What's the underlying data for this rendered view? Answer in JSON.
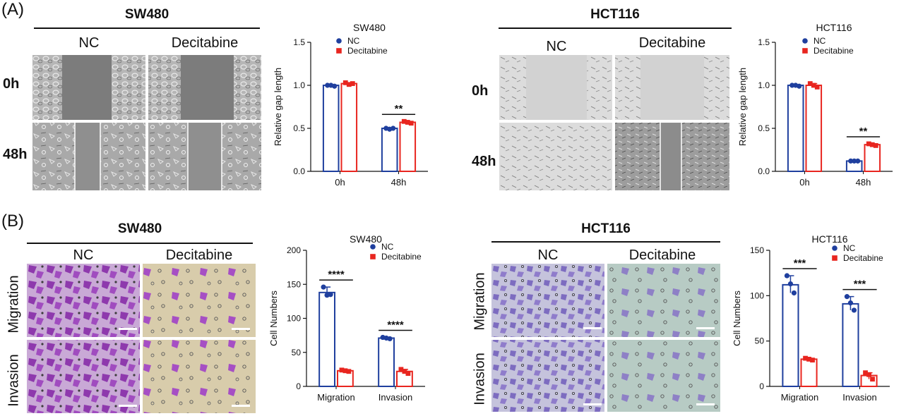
{
  "panel_a": {
    "label": "(A)",
    "sw480": {
      "title": "SW480",
      "col_nc": "NC",
      "col_dec": "Decitabine",
      "row_0h": "0h",
      "row_48h": "48h"
    },
    "hct116": {
      "title": "HCT116",
      "col_nc": "NC",
      "col_dec": "Decitabine",
      "row_0h": "0h",
      "row_48h": "48h"
    }
  },
  "panel_b": {
    "label": "(B)",
    "sw480": {
      "title": "SW480",
      "col_nc": "NC",
      "col_dec": "Decitabine",
      "row_migration": "Migration",
      "row_invasion": "Invasion"
    },
    "hct116": {
      "title": "HCT116",
      "col_nc": "NC",
      "col_dec": "Decitabine",
      "row_migration": "Migration",
      "row_invasion": "Invasion"
    }
  },
  "colors": {
    "nc": "#1f3f9e",
    "decitabine": "#e8251f",
    "stain_dark": "#9a3fb5",
    "stain_light_bg": "#d9cdb0"
  },
  "chart_data": [
    {
      "type": "bar",
      "title": "SW480",
      "ylabel": "Relative gap length",
      "xlabel": "",
      "categories": [
        "0h",
        "48h"
      ],
      "ylim": [
        0,
        1.5
      ],
      "yticks": [
        "0.0",
        "0.5",
        "1.0",
        "1.5"
      ],
      "legend_position": "top-left",
      "series": [
        {
          "name": "NC",
          "values": [
            1.0,
            0.5
          ],
          "points": [
            [
              1.0,
              1.0,
              0.99
            ],
            [
              0.5,
              0.49,
              0.5
            ]
          ]
        },
        {
          "name": "Decitabine",
          "values": [
            1.02,
            0.57
          ],
          "points": [
            [
              1.03,
              1.01,
              1.02
            ],
            [
              0.58,
              0.57,
              0.56
            ]
          ]
        }
      ],
      "significance": [
        {
          "category": "48h",
          "label": "**"
        }
      ]
    },
    {
      "type": "bar",
      "title": "HCT116",
      "ylabel": "Relative gap length",
      "xlabel": "",
      "categories": [
        "0h",
        "48h"
      ],
      "ylim": [
        0,
        1.5
      ],
      "yticks": [
        "0.0",
        "0.5",
        "1.0",
        "1.5"
      ],
      "legend_position": "top-left",
      "series": [
        {
          "name": "NC",
          "values": [
            1.0,
            0.12
          ],
          "points": [
            [
              1.0,
              1.0,
              0.99
            ],
            [
              0.12,
              0.12,
              0.12
            ]
          ]
        },
        {
          "name": "Decitabine",
          "values": [
            1.0,
            0.31
          ],
          "points": [
            [
              1.02,
              1.0,
              0.98
            ],
            [
              0.32,
              0.31,
              0.3
            ]
          ]
        }
      ],
      "significance": [
        {
          "category": "48h",
          "label": "**"
        }
      ]
    },
    {
      "type": "bar",
      "title": "SW480",
      "ylabel": "Cell Numbers",
      "xlabel": "",
      "categories": [
        "Migration",
        "Invasion"
      ],
      "ylim": [
        0,
        200
      ],
      "yticks": [
        "0",
        "50",
        "100",
        "150",
        "200"
      ],
      "legend_position": "top-right",
      "series": [
        {
          "name": "NC",
          "values": [
            138,
            71
          ],
          "points": [
            [
              146,
              134,
              135
            ],
            [
              72,
              71,
              70
            ]
          ]
        },
        {
          "name": "Decitabine",
          "values": [
            23,
            22
          ],
          "points": [
            [
              24,
              23,
              22
            ],
            [
              25,
              22,
              19
            ]
          ]
        }
      ],
      "significance": [
        {
          "category": "Migration",
          "label": "****"
        },
        {
          "category": "Invasion",
          "label": "****"
        }
      ]
    },
    {
      "type": "bar",
      "title": "HCT116",
      "ylabel": "Cell Numbers",
      "xlabel": "",
      "categories": [
        "Migration",
        "Invasion"
      ],
      "ylim": [
        0,
        150
      ],
      "yticks": [
        "0",
        "50",
        "100",
        "150"
      ],
      "legend_position": "top-right",
      "series": [
        {
          "name": "NC",
          "values": [
            112,
            91
          ],
          "points": [
            [
              122,
              113,
              103
            ],
            [
              99,
              92,
              84
            ]
          ]
        },
        {
          "name": "Decitabine",
          "values": [
            30,
            12
          ],
          "points": [
            [
              31,
              30,
              29
            ],
            [
              15,
              13,
              8
            ]
          ]
        }
      ],
      "significance": [
        {
          "category": "Migration",
          "label": "***"
        },
        {
          "category": "Invasion",
          "label": "***"
        }
      ]
    }
  ]
}
